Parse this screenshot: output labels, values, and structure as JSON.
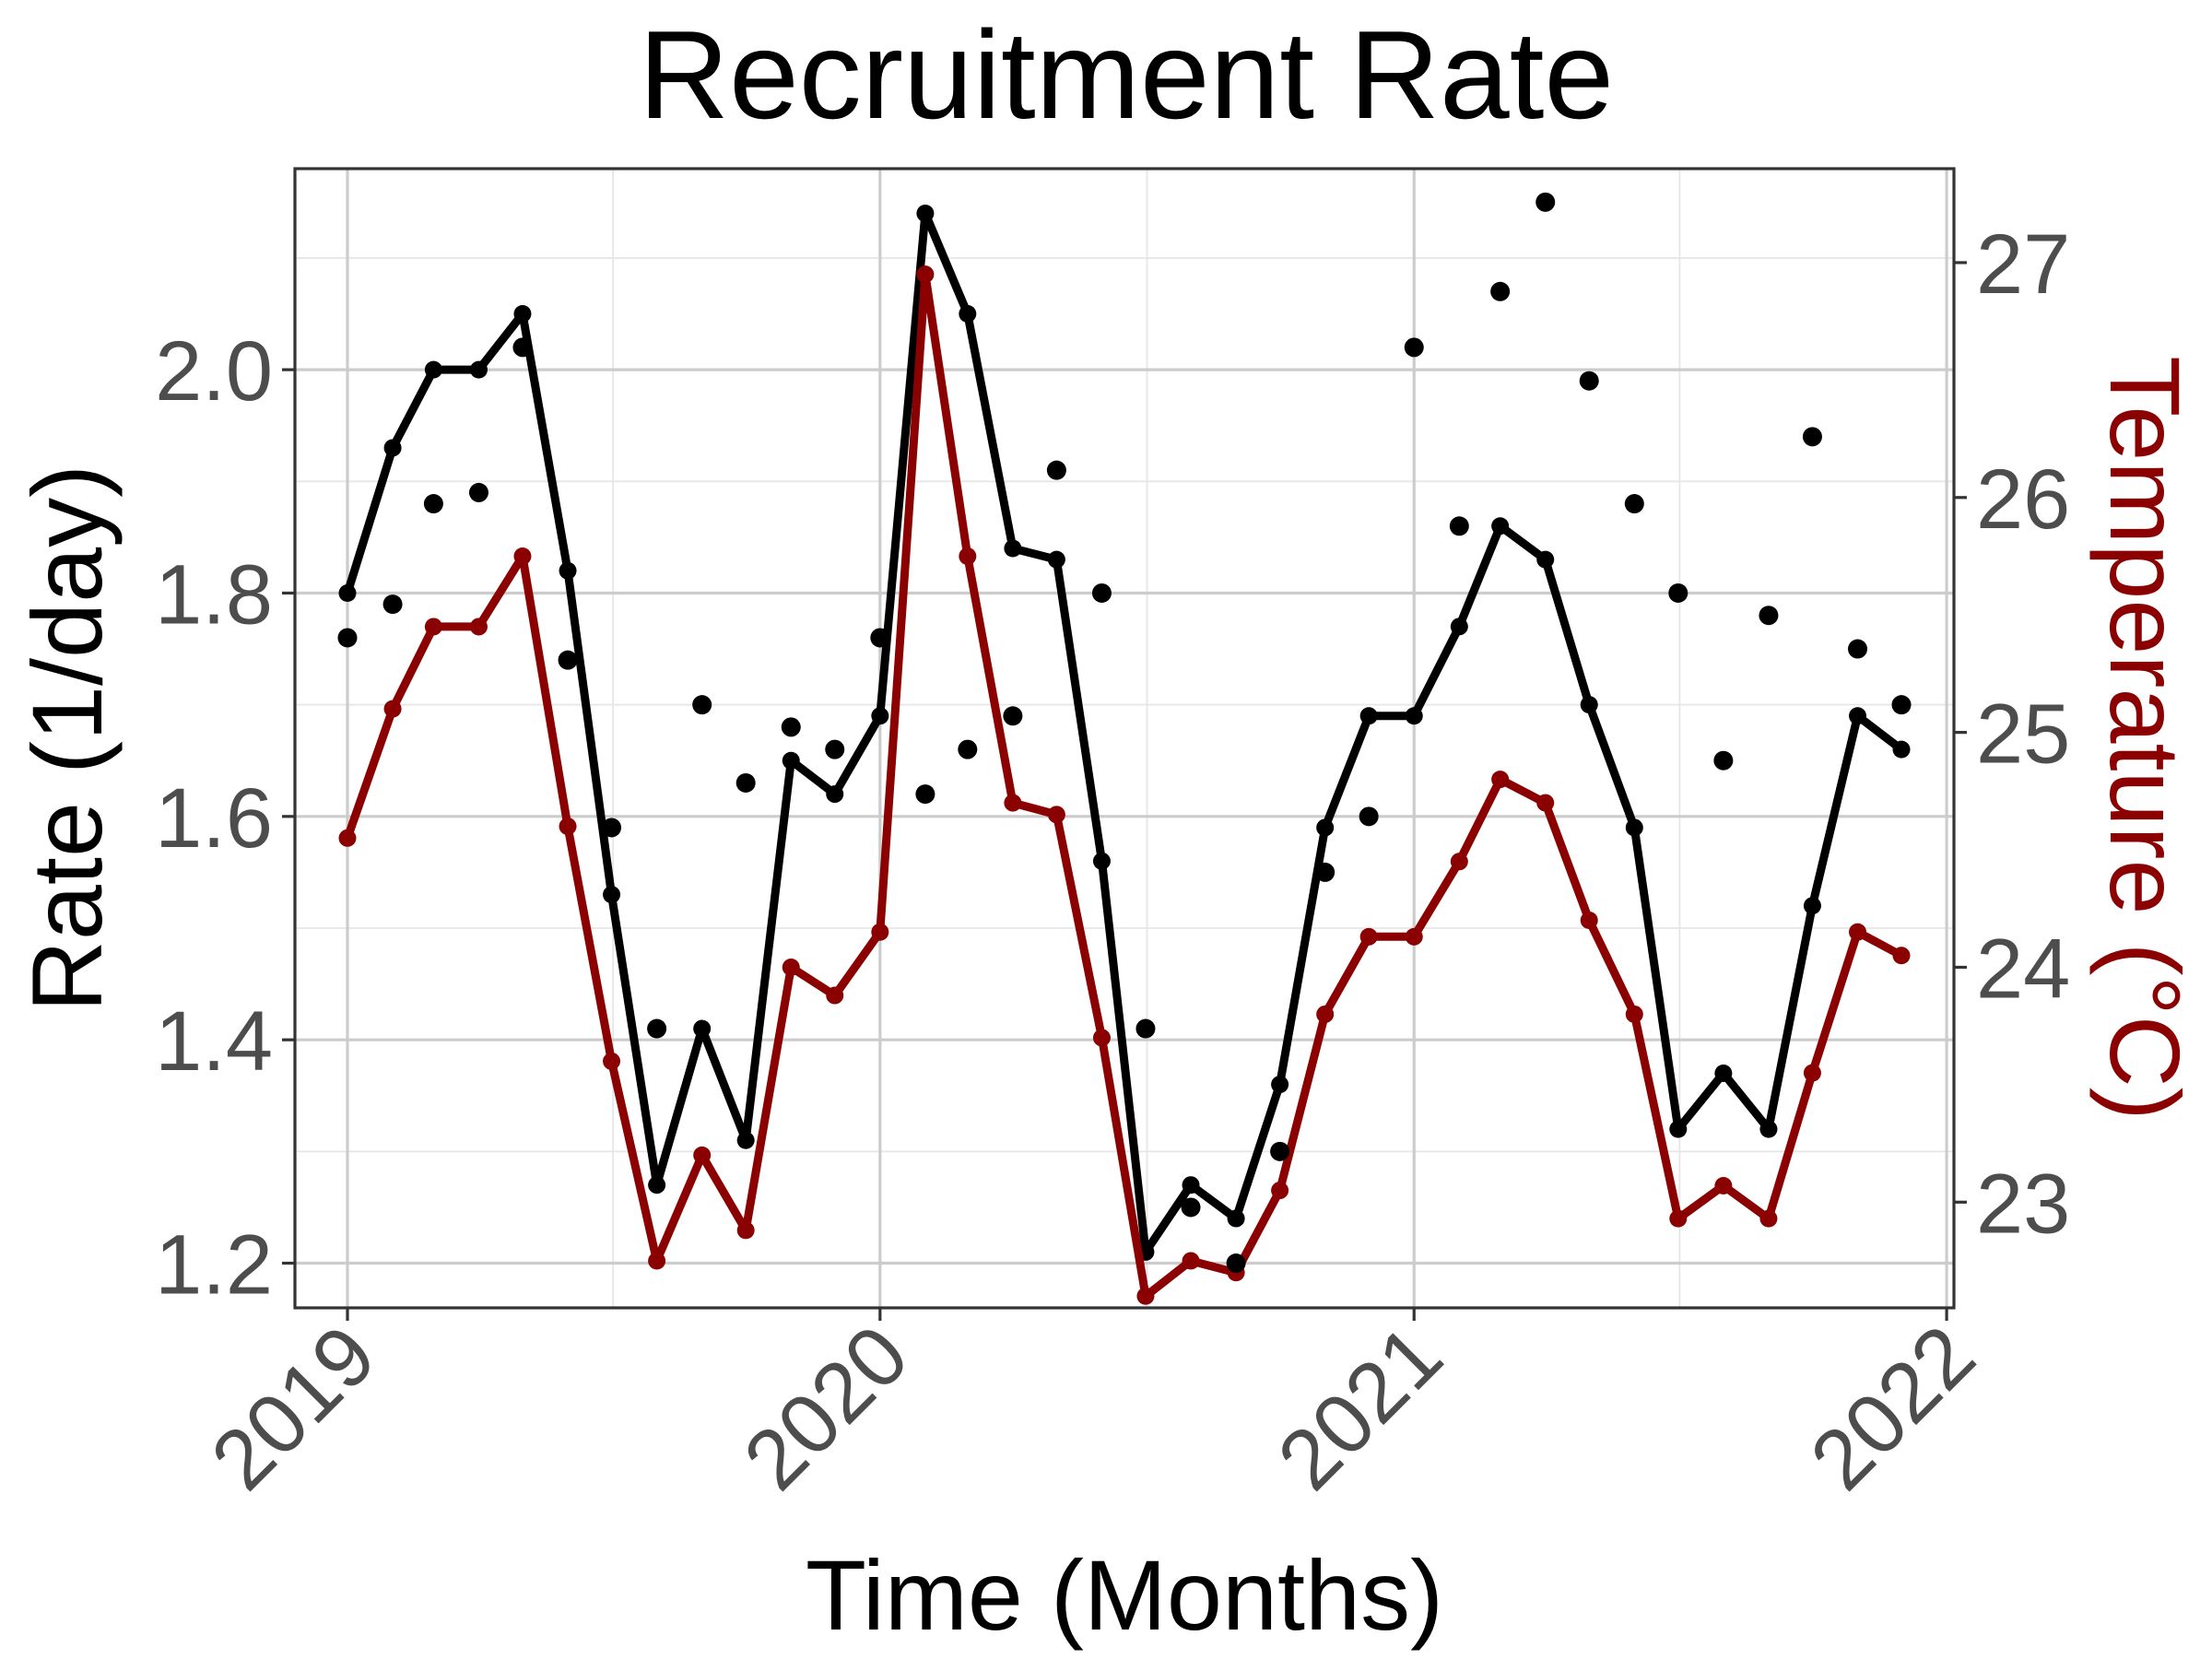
{
  "chart_data": {
    "type": "line",
    "title": "Recruitment Rate",
    "xlabel": "Time (Months)",
    "ylabel": "Rate (1/day)",
    "y2label": "Temperature (°C)",
    "x_ticks": [
      "2019",
      "2020",
      "2021",
      "2022"
    ],
    "y_ticks": [
      "1.2",
      "1.4",
      "1.6",
      "1.8",
      "2.0"
    ],
    "y2_ticks": [
      "23",
      "24",
      "25",
      "26",
      "27"
    ],
    "ylim": [
      1.16,
      2.18
    ],
    "y2lim": [
      22.55,
      27.4
    ],
    "xlim": [
      "2018-11-26",
      "2022-01-06"
    ],
    "grid": true,
    "x": [
      "2019-01",
      "2019-02",
      "2019-03",
      "2019-04",
      "2019-05",
      "2019-06",
      "2019-07",
      "2019-08",
      "2019-09",
      "2019-10",
      "2019-11",
      "2019-12",
      "2020-01",
      "2020-02",
      "2020-03",
      "2020-04",
      "2020-05",
      "2020-06",
      "2020-07",
      "2020-08",
      "2020-09",
      "2020-10",
      "2020-11",
      "2020-12",
      "2021-01",
      "2021-02",
      "2021-03",
      "2021-04",
      "2021-05",
      "2021-06",
      "2021-07",
      "2021-08",
      "2021-09",
      "2021-10",
      "2021-11",
      "2021-12"
    ],
    "series": [
      {
        "axis": "left",
        "kind": "line",
        "color": "#000000",
        "values": [
          1.8,
          1.93,
          2.0,
          2.0,
          2.05,
          1.82,
          1.53,
          1.27,
          1.41,
          1.31,
          1.65,
          1.62,
          1.69,
          2.14,
          2.05,
          1.84,
          1.83,
          1.56,
          1.21,
          1.27,
          1.24,
          1.36,
          1.59,
          1.69,
          1.69,
          1.77,
          1.86,
          1.83,
          1.7,
          1.59,
          1.32,
          1.37,
          1.32,
          1.52,
          1.69,
          1.66
        ]
      },
      {
        "axis": "right",
        "kind": "line",
        "color": "#8b0000",
        "values": [
          24.55,
          25.1,
          25.45,
          25.45,
          25.75,
          24.6,
          23.6,
          22.75,
          23.2,
          22.88,
          24.0,
          23.88,
          24.15,
          26.95,
          25.75,
          24.7,
          24.65,
          23.7,
          22.6,
          22.75,
          22.7,
          23.05,
          23.8,
          24.13,
          24.13,
          24.45,
          24.8,
          24.7,
          24.2,
          23.8,
          22.93,
          23.07,
          22.93,
          23.55,
          24.15,
          24.05
        ]
      },
      {
        "axis": "left",
        "kind": "points",
        "color": "#000000",
        "values": [
          1.76,
          1.79,
          1.88,
          1.89,
          2.02,
          1.74,
          1.59,
          1.41,
          1.7,
          1.63,
          1.68,
          1.66,
          1.76,
          1.62,
          1.66,
          1.69,
          1.91,
          1.8,
          1.41,
          1.25,
          1.2,
          1.3,
          1.55,
          1.6,
          2.02,
          1.86,
          2.07,
          2.15,
          1.99,
          1.88,
          1.8,
          1.65,
          1.78,
          1.94,
          1.75,
          1.7
        ]
      }
    ]
  }
}
